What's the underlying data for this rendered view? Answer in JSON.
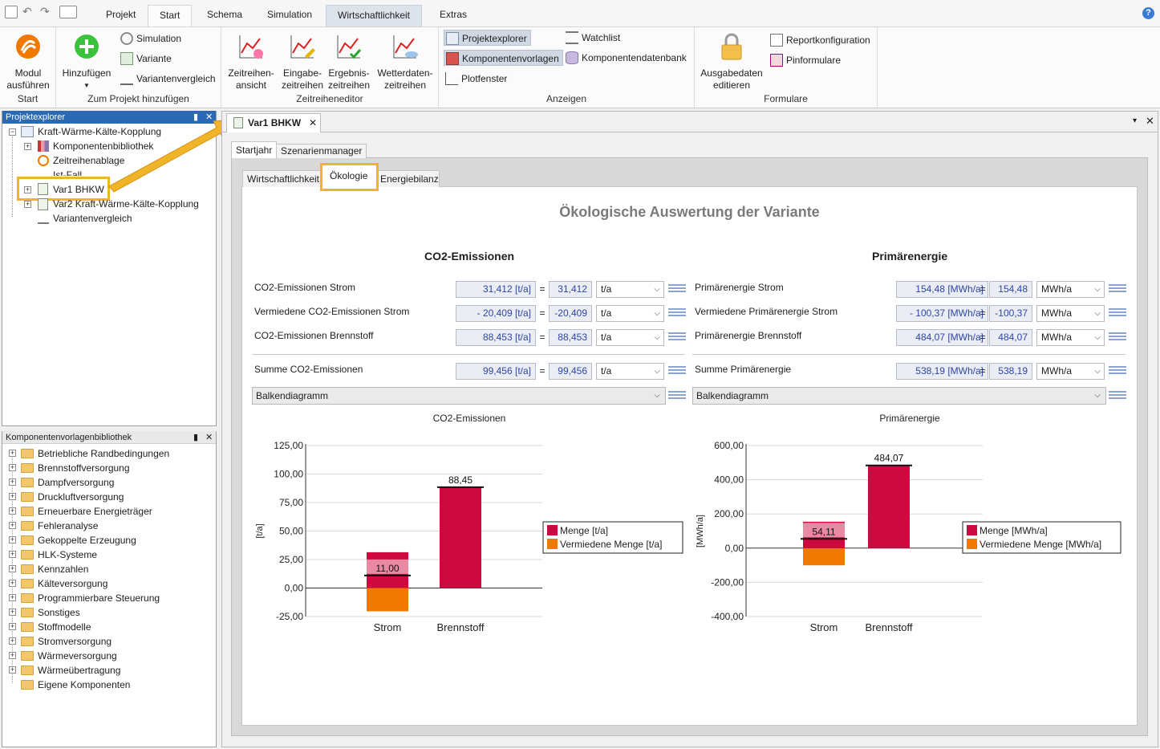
{
  "menu": {
    "tabs": [
      "Projekt",
      "Start",
      "Schema",
      "Simulation",
      "Wirtschaftlichkeit",
      "Extras"
    ],
    "help": "?"
  },
  "ribbon": {
    "modul": "Modul ausführen",
    "start_group": "Start",
    "hinzufuegen": "Hinzufügen",
    "simulation": "Simulation",
    "variante": "Variante",
    "variantenvergleich": "Variantenvergleich",
    "projekt_group": "Zum Projekt hinzufügen",
    "zr_ansicht": "Zeitreihen- ansicht",
    "eingabe": "Eingabe- zeitreihen",
    "ergebnis": "Ergebnis- zeitreihen",
    "wetter": "Wetterdaten- zeitreihen",
    "zr_group": "Zeitreiheneditor",
    "projektexplorer": "Projektexplorer",
    "komponentenvorlagen": "Komponentenvorlagen",
    "plotfenster": "Plotfenster",
    "watchlist": "Watchlist",
    "komponentendatenbank": "Komponentendatenbank",
    "anzeigen_group": "Anzeigen",
    "ausgabedaten": "Ausgabedaten editieren",
    "reportkonfiguration": "Reportkonfiguration",
    "pinformulare": "Pinformulare",
    "formulare_group": "Formulare"
  },
  "projektexplorer": {
    "title": "Projektexplorer",
    "nodes": [
      "Kraft-Wärme-Kälte-Kopplung",
      "Komponentenbibliothek",
      "Zeitreihenablage",
      "Ist-Fall",
      "Var1 BHKW",
      "Var2 Kraft-Wärme-Kälte-Kopplung",
      "Variantenvergleich"
    ]
  },
  "bibliothek": {
    "title": "Komponentenvorlagenbibliothek",
    "items": [
      "Betriebliche Randbedingungen",
      "Brennstoffversorgung",
      "Dampfversorgung",
      "Druckluftversorgung",
      "Erneuerbare Energieträger",
      "Fehleranalyse",
      "Gekoppelte Erzeugung",
      "HLK-Systeme",
      "Kennzahlen",
      "Kälteversorgung",
      "Programmierbare Steuerung",
      "Sonstiges",
      "Stoffmodelle",
      "Stromversorgung",
      "Wärmeversorgung",
      "Wärmeübertragung",
      "Eigene Komponenten"
    ]
  },
  "doc": {
    "tab": "Var1 BHKW",
    "subtabs": [
      "Startjahr",
      "Szenarienmanager"
    ],
    "innertabs": [
      "Wirtschaftlichkeit",
      "Ökologie",
      "Energiebilanz"
    ],
    "heading": "Ökologische Auswertung der Variante"
  },
  "co2": {
    "title": "CO2-Emissionen",
    "rows": [
      {
        "label": "CO2-Emissionen Strom",
        "value": "31,412 [t/a]",
        "num": "31,412",
        "unit": "t/a"
      },
      {
        "label": "Vermiedene CO2-Emissionen Strom",
        "value": "- 20,409 [t/a]",
        "num": "-20,409",
        "unit": "t/a"
      },
      {
        "label": "CO2-Emissionen Brennstoff",
        "value": "88,453 [t/a]",
        "num": "88,453",
        "unit": "t/a"
      }
    ],
    "sum": {
      "label": "Summe CO2-Emissionen",
      "value": "99,456 [t/a]",
      "num": "99,456",
      "unit": "t/a"
    },
    "chart_type": "Balkendiagramm"
  },
  "prim": {
    "title": "Primärenergie",
    "rows": [
      {
        "label": "Primärenergie Strom",
        "value": "154,48 [MWh/a]",
        "num": "154,48",
        "unit": "MWh/a"
      },
      {
        "label": "Vermiedene Primärenergie Strom",
        "value": "- 100,37 [MWh/a]",
        "num": "-100,37",
        "unit": "MWh/a"
      },
      {
        "label": "Primärenergie Brennstoff",
        "value": "484,07 [MWh/a]",
        "num": "484,07",
        "unit": "MWh/a"
      }
    ],
    "sum": {
      "label": "Summe Primärenergie",
      "value": "538,19 [MWh/a]",
      "num": "538,19",
      "unit": "MWh/a"
    },
    "chart_type": "Balkendiagramm"
  },
  "eq": "=",
  "colors": {
    "menge": "#cc0a3f",
    "vermiedene": "#f07a00",
    "menge_light": "#e88aa3"
  },
  "chart_data": [
    {
      "type": "bar",
      "title": "CO2-Emissionen",
      "ylabel": "[t/a]",
      "categories": [
        "Strom",
        "Brennstoff"
      ],
      "series": [
        {
          "name": "Menge [t/a]",
          "values": [
            31.412,
            88.453
          ]
        },
        {
          "name": "Vermiedene Menge [t/a]",
          "values": [
            -20.409,
            0
          ]
        }
      ],
      "net_markers": [
        {
          "category": "Strom",
          "value": 11.0,
          "label": "11,00"
        },
        {
          "category": "Brennstoff",
          "value": 88.45,
          "label": "88,45"
        }
      ],
      "ylim": [
        -25,
        125
      ],
      "yticks": [
        -25,
        0,
        25,
        50,
        75,
        100,
        125
      ],
      "ytick_labels": [
        "-25,00",
        "0,00",
        "25,00",
        "50,00",
        "75,00",
        "100,00",
        "125,00"
      ],
      "legend": "right"
    },
    {
      "type": "bar",
      "title": "Primärenergie",
      "ylabel": "[MWh/a]",
      "categories": [
        "Strom",
        "Brennstoff"
      ],
      "series": [
        {
          "name": "Menge [MWh/a]",
          "values": [
            154.48,
            484.07
          ]
        },
        {
          "name": "Vermiedene Menge [MWh/a]",
          "values": [
            -100.37,
            0
          ]
        }
      ],
      "net_markers": [
        {
          "category": "Strom",
          "value": 54.11,
          "label": "54,11"
        },
        {
          "category": "Brennstoff",
          "value": 484.07,
          "label": "484,07"
        }
      ],
      "ylim": [
        -400,
        600
      ],
      "yticks": [
        -400,
        -200,
        0,
        200,
        400,
        600
      ],
      "ytick_labels": [
        "-400,00",
        "-200,00",
        "0,00",
        "200,00",
        "400,00",
        "600,00"
      ],
      "legend": "right"
    }
  ]
}
